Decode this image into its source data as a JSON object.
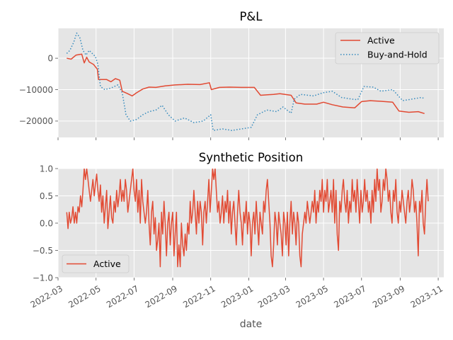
{
  "chart_data": [
    {
      "type": "line",
      "title": "P&L",
      "xlabel": "",
      "ylabel": "",
      "x_range": [
        "2022-03-01",
        "2023-11-10"
      ],
      "ylim": [
        -25200,
        9500
      ],
      "y_ticks": [
        0,
        -10000,
        -20000
      ],
      "y_tick_labels": [
        "0",
        "−10000",
        "−20000"
      ],
      "grid": true,
      "legend_placement": "top-right",
      "series": [
        {
          "name": "Active",
          "color": "#E24A33",
          "style": "solid",
          "points": [
            [
              "2022-03-15",
              0
            ],
            [
              "2022-03-22",
              -300
            ],
            [
              "2022-03-30",
              1000
            ],
            [
              "2022-04-08",
              1300
            ],
            [
              "2022-04-12",
              -1500
            ],
            [
              "2022-04-16",
              300
            ],
            [
              "2022-04-20",
              -1200
            ],
            [
              "2022-04-27",
              -2000
            ],
            [
              "2022-05-03",
              -3500
            ],
            [
              "2022-05-05",
              -6800
            ],
            [
              "2022-05-18",
              -6800
            ],
            [
              "2022-05-25",
              -7500
            ],
            [
              "2022-06-01",
              -6500
            ],
            [
              "2022-06-08",
              -7000
            ],
            [
              "2022-06-12",
              -10500
            ],
            [
              "2022-06-20",
              -11200
            ],
            [
              "2022-06-28",
              -12000
            ],
            [
              "2022-07-05",
              -11000
            ],
            [
              "2022-07-15",
              -9800
            ],
            [
              "2022-07-25",
              -9200
            ],
            [
              "2022-08-05",
              -9300
            ],
            [
              "2022-08-20",
              -8800
            ],
            [
              "2022-09-05",
              -8500
            ],
            [
              "2022-09-25",
              -8300
            ],
            [
              "2022-10-15",
              -8400
            ],
            [
              "2022-10-30",
              -7800
            ],
            [
              "2022-11-02",
              -10000
            ],
            [
              "2022-11-15",
              -9300
            ],
            [
              "2022-12-01",
              -9200
            ],
            [
              "2022-12-20",
              -9300
            ],
            [
              "2023-01-10",
              -9300
            ],
            [
              "2023-01-20",
              -11800
            ],
            [
              "2023-02-10",
              -11500
            ],
            [
              "2023-02-20",
              -11300
            ],
            [
              "2023-03-10",
              -11800
            ],
            [
              "2023-03-18",
              -14200
            ],
            [
              "2023-04-01",
              -14600
            ],
            [
              "2023-04-20",
              -14600
            ],
            [
              "2023-05-01",
              -14000
            ],
            [
              "2023-05-15",
              -14800
            ],
            [
              "2023-06-01",
              -15500
            ],
            [
              "2023-06-20",
              -15800
            ],
            [
              "2023-07-01",
              -13800
            ],
            [
              "2023-07-15",
              -13500
            ],
            [
              "2023-08-01",
              -13700
            ],
            [
              "2023-08-20",
              -14000
            ],
            [
              "2023-08-30",
              -16800
            ],
            [
              "2023-09-15",
              -17200
            ],
            [
              "2023-09-30",
              -17000
            ],
            [
              "2023-10-10",
              -17600
            ]
          ]
        },
        {
          "name": "Buy-and-Hold",
          "color": "#348ABD",
          "style": "dotted",
          "points": [
            [
              "2022-03-15",
              1500
            ],
            [
              "2022-03-20",
              2500
            ],
            [
              "2022-03-26",
              5000
            ],
            [
              "2022-03-31",
              8000
            ],
            [
              "2022-04-05",
              6500
            ],
            [
              "2022-04-10",
              2500
            ],
            [
              "2022-04-15",
              1000
            ],
            [
              "2022-04-20",
              2500
            ],
            [
              "2022-04-25",
              1500
            ],
            [
              "2022-04-30",
              500
            ],
            [
              "2022-05-04",
              -2000
            ],
            [
              "2022-05-08",
              -9000
            ],
            [
              "2022-05-15",
              -10000
            ],
            [
              "2022-05-25",
              -9500
            ],
            [
              "2022-06-05",
              -8500
            ],
            [
              "2022-06-12",
              -11000
            ],
            [
              "2022-06-18",
              -18000
            ],
            [
              "2022-06-25",
              -20000
            ],
            [
              "2022-07-05",
              -19500
            ],
            [
              "2022-07-15",
              -18000
            ],
            [
              "2022-07-25",
              -17000
            ],
            [
              "2022-08-05",
              -16500
            ],
            [
              "2022-08-15",
              -15000
            ],
            [
              "2022-08-25",
              -18000
            ],
            [
              "2022-09-05",
              -20000
            ],
            [
              "2022-09-20",
              -19000
            ],
            [
              "2022-10-05",
              -20500
            ],
            [
              "2022-10-20",
              -20000
            ],
            [
              "2022-11-01",
              -18000
            ],
            [
              "2022-11-05",
              -23000
            ],
            [
              "2022-11-20",
              -22500
            ],
            [
              "2022-12-05",
              -23000
            ],
            [
              "2022-12-20",
              -22500
            ],
            [
              "2023-01-05",
              -22000
            ],
            [
              "2023-01-15",
              -18000
            ],
            [
              "2023-01-30",
              -16500
            ],
            [
              "2023-02-15",
              -17000
            ],
            [
              "2023-02-25",
              -15500
            ],
            [
              "2023-03-10",
              -17500
            ],
            [
              "2023-03-15",
              -13000
            ],
            [
              "2023-03-25",
              -11500
            ],
            [
              "2023-04-15",
              -12000
            ],
            [
              "2023-04-30",
              -11000
            ],
            [
              "2023-05-15",
              -10500
            ],
            [
              "2023-05-30",
              -12500
            ],
            [
              "2023-06-15",
              -13000
            ],
            [
              "2023-06-25",
              -13200
            ],
            [
              "2023-07-05",
              -9000
            ],
            [
              "2023-07-20",
              -9200
            ],
            [
              "2023-08-01",
              -10500
            ],
            [
              "2023-08-20",
              -10000
            ],
            [
              "2023-09-05",
              -13500
            ],
            [
              "2023-09-20",
              -13000
            ],
            [
              "2023-10-05",
              -12500
            ],
            [
              "2023-10-10",
              -12800
            ]
          ]
        }
      ]
    },
    {
      "type": "line",
      "title": "Synthetic Position",
      "xlabel": "date",
      "ylabel": "",
      "x_range": [
        "2022-03-01",
        "2023-11-10"
      ],
      "ylim": [
        -1.0,
        1.0
      ],
      "y_ticks": [
        1.0,
        0.5,
        0.0,
        -0.5,
        -1.0
      ],
      "y_tick_labels": [
        "1.0",
        "0.5",
        "0.0",
        "−0.5",
        "−1.0"
      ],
      "grid": true,
      "legend_placement": "bottom-left",
      "series": [
        {
          "name": "Active",
          "color": "#E24A33",
          "style": "solid",
          "start_date": "2022-03-15",
          "step_days": 2,
          "values": [
            0.2,
            -0.1,
            0.2,
            0.0,
            0.1,
            0.3,
            0.0,
            0.2,
            0.0,
            0.3,
            0.2,
            0.5,
            0.3,
            0.6,
            1.0,
            0.8,
            1.0,
            0.8,
            0.6,
            0.4,
            0.6,
            0.8,
            0.5,
            0.7,
            0.9,
            0.6,
            0.4,
            0.7,
            0.2,
            0.5,
            0.0,
            0.3,
            0.6,
            -0.1,
            0.2,
            0.5,
            0.1,
            0.0,
            0.4,
            0.2,
            0.6,
            0.3,
            0.5,
            0.8,
            0.4,
            0.6,
            0.4,
            0.8,
            0.6,
            0.2,
            0.4,
            0.6,
            0.8,
            1.0,
            0.6,
            0.4,
            0.8,
            0.2,
            0.6,
            0.0,
            0.8,
            0.4,
            0.2,
            0.0,
            0.2,
            0.6,
            0.0,
            -0.4,
            0.2,
            0.4,
            -0.2,
            0.1,
            -0.5,
            -0.3,
            0.0,
            -0.8,
            0.2,
            -0.2,
            0.4,
            0.0,
            -0.6,
            0.0,
            0.2,
            -0.4,
            0.0,
            0.2,
            -0.6,
            -0.2,
            0.2,
            -0.8,
            -0.4,
            -0.8,
            0.0,
            -0.4,
            -0.6,
            -0.2,
            -0.5,
            0.0,
            -0.2,
            0.4,
            0.0,
            0.2,
            0.6,
            0.2,
            -0.2,
            0.4,
            0.0,
            0.4,
            0.2,
            -0.4,
            0.2,
            0.4,
            0.0,
            0.4,
            0.8,
            0.2,
            0.6,
            1.0,
            0.8,
            1.0,
            0.6,
            0.2,
            0.4,
            0.0,
            0.2,
            0.5,
            0.0,
            0.4,
            0.2,
            0.6,
            0.0,
            0.4,
            -0.2,
            0.2,
            0.4,
            0.0,
            -0.4,
            0.2,
            0.6,
            0.2,
            0.0,
            -0.4,
            0.2,
            0.0,
            0.4,
            -0.2,
            0.2,
            0.0,
            -0.6,
            0.0,
            0.2,
            -0.2,
            0.4,
            0.0,
            -0.4,
            0.2,
            0.0,
            -0.2,
            0.4,
            0.2,
            0.6,
            0.8,
            0.4,
            0.0,
            -0.6,
            -0.8,
            -0.4,
            0.2,
            0.0,
            -0.4,
            0.2,
            0.0,
            -0.2,
            -0.6,
            0.2,
            0.0,
            -0.4,
            0.2,
            -0.6,
            0.0,
            0.4,
            -0.2,
            0.2,
            0.0,
            -0.4,
            0.2,
            0.0,
            -0.6,
            -0.8,
            -0.2,
            0.0,
            0.2,
            0.0,
            0.4,
            0.2,
            0.0,
            0.2,
            0.4,
            0.2,
            0.6,
            0.0,
            0.4,
            0.2,
            0.6,
            0.4,
            0.8,
            0.2,
            0.6,
            0.4,
            0.8,
            0.2,
            0.4,
            0.6,
            0.2,
            0.8,
            0.0,
            0.6,
            -0.2,
            -0.5,
            0.4,
            0.2,
            0.6,
            0.8,
            0.4,
            0.2,
            0.6,
            0.0,
            0.4,
            0.2,
            0.8,
            0.4,
            0.6,
            0.2,
            0.8,
            0.4,
            0.0,
            0.6,
            0.2,
            0.4,
            0.8,
            0.4,
            0.6,
            0.2,
            0.4,
            0.0,
            0.6,
            0.2,
            0.8,
            0.4,
            1.0,
            0.6,
            0.8,
            0.2,
            0.4,
            0.8,
            0.6,
            1.0,
            0.8,
            0.4,
            0.6,
            0.2,
            0.0,
            0.6,
            0.4,
            0.8,
            0.2,
            0.0,
            0.4,
            0.2,
            0.6,
            0.4,
            0.2,
            0.0,
            0.4,
            0.6,
            0.2,
            0.4,
            0.8,
            0.6,
            0.2,
            0.4,
            0.0,
            -0.6,
            0.4,
            0.2,
            0.6,
            0.0,
            -0.2,
            0.4,
            0.8,
            0.4
          ]
        }
      ]
    }
  ],
  "shared_x_axis": {
    "tick_dates": [
      "2022-03-01",
      "2022-05-01",
      "2022-07-01",
      "2022-09-01",
      "2022-11-01",
      "2023-01-01",
      "2023-03-01",
      "2023-05-01",
      "2023-07-01",
      "2023-09-01",
      "2023-11-01"
    ],
    "tick_labels": [
      "2022-03",
      "2022-05",
      "2022-07",
      "2022-09",
      "2022-11",
      "2023-01",
      "2023-03",
      "2023-05",
      "2023-07",
      "2023-09",
      "2023-11"
    ]
  },
  "colors": {
    "background": "#E5E5E5",
    "grid": "#FFFFFF",
    "active": "#E24A33",
    "buy_and_hold": "#348ABD"
  }
}
